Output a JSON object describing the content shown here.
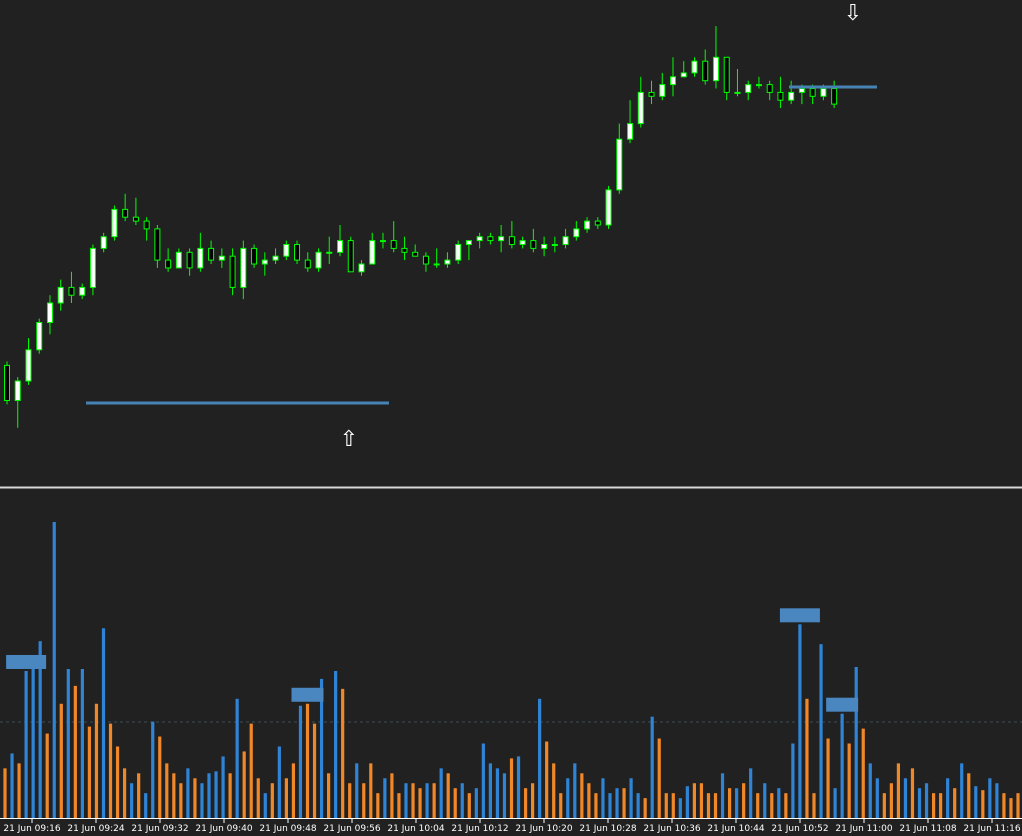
{
  "chart_data": [
    {
      "type": "candlestick",
      "colors": {
        "bull_body": "#ffffff",
        "bear_body": "#000000",
        "wick": "#00ff00",
        "level_line": "#4682b4",
        "marker": "#ffffff"
      },
      "candles": [
        [
          1,
          104,
          95,
          105,
          94
        ],
        [
          2,
          95,
          100,
          101,
          88
        ],
        [
          3,
          100,
          108,
          111,
          99
        ],
        [
          4,
          108,
          115,
          116,
          107
        ],
        [
          5,
          115,
          120,
          122,
          112
        ],
        [
          6,
          120,
          124,
          126,
          118
        ],
        [
          7,
          124,
          122,
          128,
          120
        ],
        [
          8,
          122,
          124,
          125,
          121
        ],
        [
          9,
          124,
          134,
          135,
          122
        ],
        [
          10,
          134,
          137,
          138,
          133
        ],
        [
          11,
          137,
          144,
          145,
          136
        ],
        [
          12,
          144,
          142,
          148,
          141
        ],
        [
          13,
          142,
          141,
          147,
          140
        ],
        [
          14,
          141,
          139,
          142,
          136
        ],
        [
          15,
          139,
          131,
          140,
          129
        ],
        [
          16,
          131,
          129,
          134,
          128
        ],
        [
          17,
          129,
          133,
          134,
          131
        ],
        [
          18,
          133,
          129,
          134,
          127
        ],
        [
          19,
          129,
          134,
          138,
          128
        ],
        [
          20,
          134,
          131,
          136,
          130
        ],
        [
          21,
          131,
          132,
          134,
          129
        ],
        [
          22,
          132,
          124,
          134,
          122
        ],
        [
          23,
          124,
          134,
          136,
          121
        ],
        [
          24,
          134,
          130,
          135,
          129
        ],
        [
          25,
          130,
          131,
          133,
          127
        ],
        [
          26,
          131,
          132,
          134,
          130
        ],
        [
          27,
          132,
          135,
          136,
          131
        ],
        [
          28,
          135,
          131,
          136,
          130
        ],
        [
          29,
          131,
          129,
          133,
          128
        ],
        [
          30,
          129,
          133,
          134,
          128
        ],
        [
          31,
          133,
          133,
          137,
          130
        ],
        [
          32,
          133,
          136,
          140,
          132
        ],
        [
          33,
          136,
          128,
          137,
          128
        ],
        [
          34,
          128,
          130,
          131,
          127
        ],
        [
          35,
          130,
          136,
          138,
          130
        ],
        [
          36,
          136,
          136,
          138,
          134
        ],
        [
          37,
          136,
          134,
          141,
          133
        ],
        [
          38,
          134,
          133,
          137,
          131
        ],
        [
          39,
          133,
          132,
          135,
          132
        ],
        [
          40,
          132,
          130,
          133,
          128
        ],
        [
          41,
          130,
          130,
          134,
          129
        ],
        [
          42,
          130,
          131,
          133,
          129
        ],
        [
          43,
          131,
          135,
          136,
          130
        ],
        [
          44,
          135,
          136,
          136,
          131
        ],
        [
          45,
          136,
          137,
          138,
          134
        ],
        [
          46,
          137,
          136,
          138,
          135
        ],
        [
          47,
          136,
          137,
          140,
          133
        ],
        [
          48,
          137,
          135,
          141,
          134
        ],
        [
          49,
          135,
          136,
          137,
          134
        ],
        [
          50,
          136,
          134,
          139,
          133
        ],
        [
          51,
          134,
          135,
          137,
          132
        ],
        [
          52,
          135,
          135,
          137,
          133
        ],
        [
          53,
          135,
          137,
          139,
          134
        ],
        [
          54,
          137,
          139,
          141,
          136
        ],
        [
          55,
          139,
          141,
          142,
          138
        ],
        [
          56,
          141,
          140,
          142,
          139
        ],
        [
          57,
          140,
          149,
          150,
          139
        ],
        [
          58,
          149,
          162,
          166,
          148
        ],
        [
          59,
          162,
          166,
          172,
          161
        ],
        [
          60,
          166,
          174,
          178,
          165
        ],
        [
          61,
          174,
          173,
          177,
          171
        ],
        [
          62,
          173,
          176,
          179,
          172
        ],
        [
          63,
          176,
          178,
          183,
          173
        ],
        [
          64,
          178,
          179,
          182,
          178
        ],
        [
          65,
          179,
          182,
          183,
          178
        ],
        [
          66,
          182,
          177,
          185,
          176
        ],
        [
          67,
          177,
          183,
          191,
          175
        ],
        [
          68,
          183,
          174,
          183,
          172
        ],
        [
          69,
          174,
          174,
          180,
          173
        ],
        [
          70,
          174,
          176,
          177,
          172
        ],
        [
          71,
          176,
          176,
          178,
          175
        ],
        [
          72,
          176,
          174,
          177,
          172
        ],
        [
          73,
          174,
          172,
          178,
          170
        ],
        [
          74,
          172,
          174,
          177,
          171
        ],
        [
          75,
          174,
          175,
          176,
          171
        ],
        [
          76,
          175,
          173,
          176,
          171
        ],
        [
          77,
          173,
          175,
          176,
          172
        ],
        [
          78,
          175,
          171,
          177,
          170
        ]
      ]
    },
    {
      "type": "bar",
      "x_tick_labels": [
        "21 Jun 09:16",
        "21 Jun 09:24",
        "21 Jun 09:32",
        "21 Jun 09:40",
        "21 Jun 09:48",
        "21 Jun 09:56",
        "21 Jun 10:04",
        "21 Jun 10:12",
        "21 Jun 10:20",
        "21 Jun 10:28",
        "21 Jun 10:36",
        "21 Jun 10:44",
        "21 Jun 10:52",
        "21 Jun 11:00",
        "21 Jun 11:08",
        "21 Jun 11:16"
      ],
      "ylim": [
        0,
        300
      ],
      "reference_level": 95,
      "colors": {
        "up": "#2f84d6",
        "down": "#f0882a",
        "peak_marker": "#4a86c0",
        "reference_line": "#3c4d55"
      },
      "series": [
        {
          "values": [
            50,
            65,
            55,
            148,
            164,
            178,
            85,
            298,
            115,
            150,
            133,
            150,
            92,
            115,
            191,
            95,
            72,
            50,
            35,
            45,
            25,
            97,
            82,
            55,
            45,
            35,
            50,
            40,
            35,
            45,
            47,
            62,
            45,
            120,
            67,
            95,
            40,
            25,
            35,
            72,
            40,
            55,
            113,
            115,
            95,
            140,
            45,
            148,
            130,
            35,
            55,
            35,
            55,
            25,
            40,
            45,
            25,
            35,
            35,
            30,
            35,
            35,
            50,
            45,
            30,
            35,
            25,
            30,
            75,
            55,
            50,
            45,
            60,
            62,
            30,
            35,
            120,
            77,
            55,
            25,
            40,
            55,
            45,
            35,
            25,
            40,
            25,
            30,
            30,
            40,
            25,
            20,
            102,
            80,
            25,
            25,
            20,
            32,
            35,
            35,
            25,
            25,
            45,
            30,
            30,
            35,
            50,
            25,
            35,
            25,
            30,
            25,
            75,
            195,
            120,
            25,
            175,
            80,
            30,
            105,
            75,
            152,
            90,
            55,
            40,
            25,
            35,
            55,
            40,
            50,
            30,
            35,
            25,
            25,
            40,
            30,
            55,
            45,
            32,
            28,
            40,
            35,
            25,
            20,
            25
          ]
        },
        {
          "colors": [
            "down",
            "up",
            "down",
            "up",
            "up",
            "up",
            "down",
            "up",
            "down",
            "up",
            "down",
            "up",
            "down",
            "down",
            "up",
            "down",
            "down",
            "down",
            "up",
            "down",
            "up",
            "up",
            "down",
            "down",
            "down",
            "down",
            "up",
            "down",
            "up",
            "up",
            "up",
            "up",
            "down",
            "up",
            "down",
            "down",
            "down",
            "up",
            "down",
            "up",
            "down",
            "down",
            "up",
            "down",
            "down",
            "up",
            "down",
            "up",
            "down",
            "down",
            "up",
            "down",
            "down",
            "down",
            "up",
            "down",
            "down",
            "up",
            "down",
            "down",
            "up",
            "down",
            "up",
            "down",
            "down",
            "up",
            "down",
            "up",
            "up",
            "up",
            "up",
            "up",
            "down",
            "up",
            "down",
            "down",
            "up",
            "down",
            "down",
            "down",
            "up",
            "up",
            "down",
            "down",
            "down",
            "up",
            "up",
            "up",
            "down",
            "up",
            "up",
            "down",
            "up",
            "down",
            "down",
            "down",
            "up",
            "up",
            "down",
            "down",
            "down",
            "down",
            "up",
            "down",
            "up",
            "down",
            "up",
            "down",
            "up",
            "down",
            "up",
            "down",
            "up",
            "up",
            "down",
            "down",
            "up",
            "down",
            "up",
            "up",
            "down",
            "up",
            "down",
            "up",
            "up",
            "down",
            "down",
            "down",
            "up",
            "down",
            "up",
            "up",
            "down",
            "down",
            "up",
            "down",
            "up",
            "down",
            "up",
            "down",
            "up",
            "up",
            "down",
            "down",
            "down"
          ]
        }
      ],
      "peak_markers": [
        3,
        43,
        113,
        119
      ]
    }
  ],
  "markers": {
    "up_arrow": "⇧",
    "down_arrow": "⇩"
  }
}
